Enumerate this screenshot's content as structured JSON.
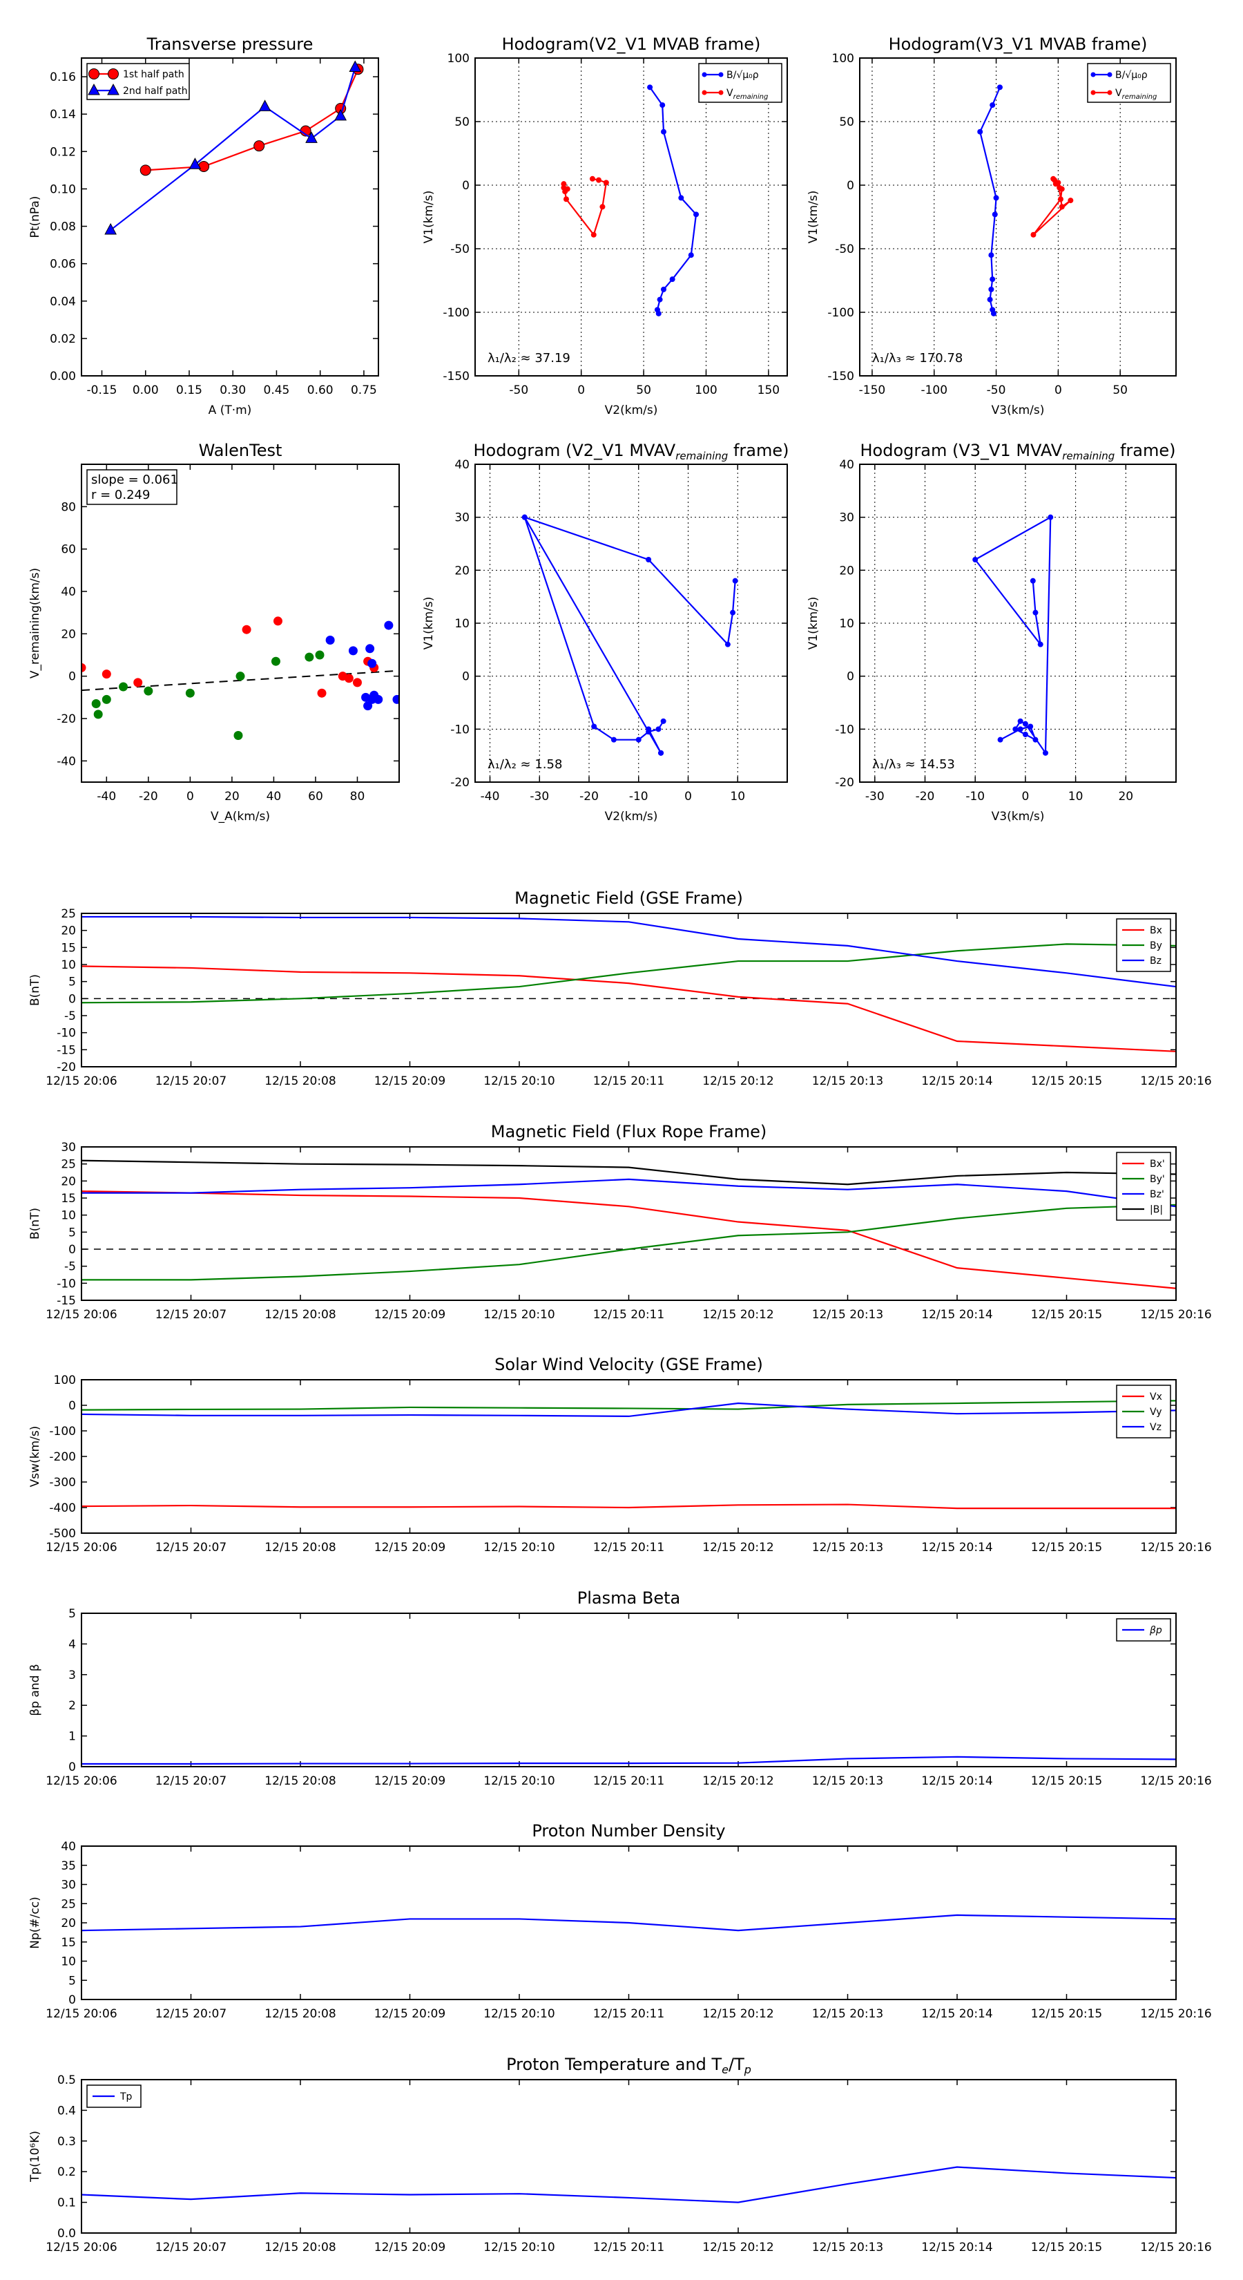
{
  "colors": {
    "red": "#ff0000",
    "blue": "#0000ff",
    "green": "#008000",
    "black": "#000000"
  },
  "chart_data": [
    {
      "id": "tp",
      "type": "scatter",
      "title": "Transverse pressure",
      "xlabel": "A (T·m)",
      "ylabel": "Pt(nPa)",
      "xlim": [
        -0.22,
        0.8
      ],
      "ylim": [
        0,
        0.17
      ],
      "xticks": [
        "-0.15",
        "0.00",
        "0.15",
        "0.30",
        "0.45",
        "0.60",
        "0.75"
      ],
      "yticks": [
        "0.00",
        "0.02",
        "0.04",
        "0.06",
        "0.08",
        "0.10",
        "0.12",
        "0.14",
        "0.16"
      ],
      "legend_position": "top-left",
      "series": [
        {
          "name": "1st half path",
          "color": "red",
          "marker": "circle",
          "x": [
            0.0,
            0.2,
            0.39,
            0.55,
            0.67,
            0.73
          ],
          "y": [
            0.11,
            0.112,
            0.123,
            0.131,
            0.143,
            0.164
          ]
        },
        {
          "name": "2nd half path",
          "color": "blue",
          "marker": "triangle",
          "x": [
            -0.12,
            0.17,
            0.41,
            0.57,
            0.67,
            0.72
          ],
          "y": [
            0.078,
            0.113,
            0.144,
            0.127,
            0.139,
            0.165
          ]
        }
      ]
    },
    {
      "id": "h1",
      "type": "line",
      "title": "Hodogram(V2_V1 MVAB frame)",
      "xlabel": "V2(km/s)",
      "ylabel": "V1(km/s)",
      "xlim": [
        -85,
        165
      ],
      "ylim": [
        -150,
        100
      ],
      "xticks": [
        "-50",
        "0",
        "50",
        "100",
        "150"
      ],
      "yticks": [
        "-150",
        "-100",
        "-50",
        "0",
        "50",
        "100"
      ],
      "annotation": "λ₁/λ₂ ≈ 37.19",
      "legend_position": "top-right",
      "series": [
        {
          "name": "B/√μ₀ρ",
          "color": "blue",
          "x": [
            55,
            65,
            66,
            80,
            92,
            88,
            73,
            66,
            63,
            61,
            62
          ],
          "y": [
            77,
            63,
            42,
            -10,
            -23,
            -55,
            -74,
            -82,
            -90,
            -98,
            -101
          ]
        },
        {
          "name": "V_remaining",
          "color": "red",
          "x": [
            9,
            14,
            20,
            17,
            10,
            -12,
            -13,
            -11,
            -14,
            -14
          ],
          "y": [
            5,
            4,
            2,
            -17,
            -39,
            -11,
            -5,
            -3,
            -2,
            1
          ]
        }
      ]
    },
    {
      "id": "h2",
      "type": "line",
      "title": "Hodogram(V3_V1 MVAB frame)",
      "xlabel": "V3(km/s)",
      "ylabel": "V1(km/s)",
      "xlim": [
        -160,
        95
      ],
      "ylim": [
        -150,
        100
      ],
      "xticks": [
        "-150",
        "-100",
        "-50",
        "0",
        "50"
      ],
      "yticks": [
        "-150",
        "-100",
        "-50",
        "0",
        "50",
        "100"
      ],
      "annotation": "λ₁/λ₃ ≈ 170.78",
      "legend_position": "top-right",
      "series": [
        {
          "name": "B/√μ₀ρ",
          "color": "blue",
          "x": [
            -47,
            -53,
            -63,
            -50,
            -51,
            -54,
            -53,
            -54,
            -55,
            -53,
            -52
          ],
          "y": [
            77,
            63,
            42,
            -10,
            -23,
            -55,
            -74,
            -82,
            -90,
            -98,
            -101
          ]
        },
        {
          "name": "V_remaining",
          "color": "red",
          "x": [
            -4,
            -3,
            0,
            3,
            10,
            -20,
            2,
            3,
            1,
            -2
          ],
          "y": [
            5,
            4,
            2,
            -17,
            -12,
            -39,
            -11,
            -3,
            -2,
            1
          ]
        }
      ]
    },
    {
      "id": "walen",
      "type": "scatter",
      "title": "WalenTest",
      "xlabel": "V_A(km/s)",
      "ylabel": "V_remaining(km/s)",
      "xlim": [
        -52,
        100
      ],
      "ylim": [
        -50,
        100
      ],
      "xticks": [
        "-40",
        "-20",
        "0",
        "20",
        "40",
        "60",
        "80"
      ],
      "yticks": [
        "-40",
        "-20",
        "0",
        "20",
        "40",
        "60",
        "80"
      ],
      "annotation": [
        "slope = 0.061",
        "r = 0.249"
      ],
      "fit": {
        "slope": 0.061,
        "intercept": -3.5
      },
      "series": [
        {
          "name": "",
          "color": "red",
          "x": [
            -52,
            -40,
            -25,
            27,
            42,
            63,
            73,
            76,
            80,
            85,
            88
          ],
          "y": [
            4,
            1,
            -3,
            22,
            26,
            -8,
            0,
            -1,
            -3,
            7,
            4
          ]
        },
        {
          "name": "",
          "color": "green",
          "x": [
            -45,
            -44,
            -40,
            -32,
            -20,
            0,
            23,
            24,
            41,
            57,
            62
          ],
          "y": [
            -13,
            -18,
            -11,
            -5,
            -7,
            -8,
            -28,
            0,
            7,
            9,
            10
          ]
        },
        {
          "name": "",
          "color": "blue",
          "x": [
            67,
            78,
            84,
            85,
            86,
            87,
            87,
            88,
            90,
            95,
            99
          ],
          "y": [
            17,
            12,
            -10,
            -14,
            13,
            -11,
            6,
            -9,
            -11,
            24,
            -11
          ]
        }
      ]
    },
    {
      "id": "h3",
      "type": "line",
      "title": "Hodogram (V2_V1 MVAV",
      "title_sub": "remaining",
      "title_end": " frame)",
      "xlabel": "V2(km/s)",
      "ylabel": "V1(km/s)",
      "xlim": [
        -43,
        20
      ],
      "ylim": [
        -20,
        40
      ],
      "xticks": [
        "-40",
        "-30",
        "-20",
        "-10",
        "0",
        "10"
      ],
      "yticks": [
        "-20",
        "-10",
        "0",
        "10",
        "20",
        "30",
        "40"
      ],
      "annotation": "λ₁/λ₂ ≈ 1.58",
      "series": [
        {
          "name": "",
          "color": "blue",
          "x": [
            -5,
            -6,
            -8,
            -10,
            -15,
            -19,
            -33,
            -8,
            8,
            9,
            9.5
          ],
          "y": [
            -8.5,
            -10,
            -10.5,
            -12,
            -12,
            -9.5,
            30,
            22,
            6,
            12,
            18
          ]
        },
        {
          "name": "",
          "color": "blue",
          "x": [
            -8,
            -5.5
          ],
          "y": [
            -10,
            -14.5
          ]
        },
        {
          "name": "",
          "color": "blue",
          "x": [
            -33,
            -5.5
          ],
          "y": [
            30,
            -14.5
          ]
        }
      ]
    },
    {
      "id": "h4",
      "type": "line",
      "title": "Hodogram (V3_V1 MVAV",
      "title_sub": "remaining",
      "title_end": " frame)",
      "xlabel": "V3(km/s)",
      "ylabel": "V1(km/s)",
      "xlim": [
        -33,
        30
      ],
      "ylim": [
        -20,
        40
      ],
      "xticks": [
        "-30",
        "-20",
        "-10",
        "0",
        "10",
        "20"
      ],
      "yticks": [
        "-20",
        "-10",
        "0",
        "10",
        "20",
        "30",
        "40"
      ],
      "annotation": "λ₁/λ₃ ≈ 14.53",
      "series": [
        {
          "name": "",
          "color": "blue",
          "x": [
            -5,
            -1,
            1,
            2,
            0,
            -2,
            -1,
            0,
            4,
            5,
            -10,
            3,
            2,
            1.5
          ],
          "y": [
            -12,
            -10,
            -9.5,
            -12,
            -11,
            -10,
            -8.5,
            -9,
            -14.5,
            30,
            22,
            6,
            12,
            18
          ]
        }
      ]
    },
    {
      "id": "ts1",
      "type": "line",
      "title": "Magnetic Field (GSE Frame)",
      "ylabel": "B(nT)",
      "x": [
        "12/15 20:06",
        "12/15 20:07",
        "12/15 20:08",
        "12/15 20:09",
        "12/15 20:10",
        "12/15 20:11",
        "12/15 20:12",
        "12/15 20:13",
        "12/15 20:14",
        "12/15 20:15",
        "12/15 20:16"
      ],
      "ylim": [
        -20,
        25
      ],
      "yticks": [
        "-20",
        "-15",
        "-10",
        "-5",
        "0",
        "5",
        "10",
        "15",
        "20",
        "25"
      ],
      "zero_line": true,
      "legend_position": "top-right",
      "series": [
        {
          "name": "Bx",
          "color": "red",
          "values": [
            9.5,
            9,
            7.8,
            7.5,
            6.7,
            4.5,
            0.5,
            -1.5,
            -12.5,
            -14,
            -15.5
          ]
        },
        {
          "name": "By",
          "color": "green",
          "values": [
            -1.2,
            -1,
            0,
            1.5,
            3.5,
            7.5,
            11,
            11,
            14,
            16,
            15.5
          ]
        },
        {
          "name": "Bz",
          "color": "blue",
          "values": [
            24,
            24,
            23.8,
            23.8,
            23.5,
            22.5,
            17.5,
            15.5,
            11,
            7.5,
            3.5
          ]
        }
      ]
    },
    {
      "id": "ts2",
      "type": "line",
      "title": "Magnetic Field (Flux Rope Frame)",
      "ylabel": "B(nT)",
      "x": [
        "12/15 20:06",
        "12/15 20:07",
        "12/15 20:08",
        "12/15 20:09",
        "12/15 20:10",
        "12/15 20:11",
        "12/15 20:12",
        "12/15 20:13",
        "12/15 20:14",
        "12/15 20:15",
        "12/15 20:16"
      ],
      "ylim": [
        -15,
        30
      ],
      "yticks": [
        "-15",
        "-10",
        "-5",
        "0",
        "5",
        "10",
        "15",
        "20",
        "25",
        "30"
      ],
      "zero_line": true,
      "legend_position": "top-right",
      "series": [
        {
          "name": "Bx'",
          "color": "red",
          "values": [
            17,
            16.5,
            15.8,
            15.5,
            15,
            12.5,
            8,
            5.5,
            -5.5,
            -8.5,
            -11.5
          ]
        },
        {
          "name": "By'",
          "color": "green",
          "values": [
            -9,
            -9,
            -8,
            -6.5,
            -4.5,
            0,
            4,
            5,
            9,
            12,
            13
          ]
        },
        {
          "name": "Bz'",
          "color": "blue",
          "values": [
            16.5,
            16.5,
            17.5,
            18,
            19,
            20.5,
            18.5,
            17.5,
            19,
            17,
            12.5
          ]
        },
        {
          "name": "|B|",
          "color": "black",
          "values": [
            26,
            25.5,
            25,
            24.8,
            24.5,
            24,
            20.5,
            19,
            21.5,
            22.5,
            22
          ]
        }
      ]
    },
    {
      "id": "ts3",
      "type": "line",
      "title": "Solar Wind Velocity (GSE Frame)",
      "ylabel": "Vsw(km/s)",
      "x": [
        "12/15 20:06",
        "12/15 20:07",
        "12/15 20:08",
        "12/15 20:09",
        "12/15 20:10",
        "12/15 20:11",
        "12/15 20:12",
        "12/15 20:13",
        "12/15 20:14",
        "12/15 20:15",
        "12/15 20:16"
      ],
      "ylim": [
        -500,
        100
      ],
      "yticks": [
        "-500",
        "-400",
        "-300",
        "-200",
        "-100",
        "0",
        "100"
      ],
      "legend_position": "top-right",
      "series": [
        {
          "name": "Vx",
          "color": "red",
          "values": [
            -395,
            -392,
            -398,
            -398,
            -396,
            -400,
            -390,
            -388,
            -403,
            -403,
            -403
          ]
        },
        {
          "name": "Vy",
          "color": "green",
          "values": [
            -18,
            -16,
            -15,
            -8,
            -10,
            -12,
            -15,
            3,
            8,
            13,
            18
          ]
        },
        {
          "name": "Vz",
          "color": "blue",
          "values": [
            -35,
            -40,
            -40,
            -38,
            -40,
            -43,
            8,
            -15,
            -33,
            -28,
            -20
          ]
        }
      ]
    },
    {
      "id": "ts4",
      "type": "line",
      "title": "Plasma Beta",
      "ylabel": "βp and β",
      "x": [
        "12/15 20:06",
        "12/15 20:07",
        "12/15 20:08",
        "12/15 20:09",
        "12/15 20:10",
        "12/15 20:11",
        "12/15 20:12",
        "12/15 20:13",
        "12/15 20:14",
        "12/15 20:15",
        "12/15 20:16"
      ],
      "ylim": [
        0,
        5
      ],
      "yticks": [
        "0",
        "1",
        "2",
        "3",
        "4",
        "5"
      ],
      "legend_position": "top-right",
      "series": [
        {
          "name": "βp",
          "color": "blue",
          "values": [
            0.09,
            0.09,
            0.1,
            0.1,
            0.11,
            0.11,
            0.12,
            0.26,
            0.32,
            0.26,
            0.24
          ]
        }
      ]
    },
    {
      "id": "ts5",
      "type": "line",
      "title": "Proton Number Density",
      "ylabel": "Np(#/cc)",
      "x": [
        "12/15 20:06",
        "12/15 20:07",
        "12/15 20:08",
        "12/15 20:09",
        "12/15 20:10",
        "12/15 20:11",
        "12/15 20:12",
        "12/15 20:13",
        "12/15 20:14",
        "12/15 20:15",
        "12/15 20:16"
      ],
      "ylim": [
        0,
        40
      ],
      "yticks": [
        "0",
        "5",
        "10",
        "15",
        "20",
        "25",
        "30",
        "35",
        "40"
      ],
      "series": [
        {
          "name": "",
          "color": "blue",
          "values": [
            18,
            18.5,
            19,
            21,
            21,
            20,
            18,
            20,
            22,
            21.5,
            21
          ]
        }
      ]
    },
    {
      "id": "ts6",
      "type": "line",
      "title": "Proton Temperature and T",
      "title_math": "e",
      "title_mid": "/T",
      "title_math2": "p",
      "ylabel": "Tp(10⁶K)",
      "x": [
        "12/15 20:06",
        "12/15 20:07",
        "12/15 20:08",
        "12/15 20:09",
        "12/15 20:10",
        "12/15 20:11",
        "12/15 20:12",
        "12/15 20:13",
        "12/15 20:14",
        "12/15 20:15",
        "12/15 20:16"
      ],
      "ylim": [
        0,
        0.5
      ],
      "yticks": [
        "0.0",
        "0.1",
        "0.2",
        "0.3",
        "0.4",
        "0.5"
      ],
      "legend_position": "top-left",
      "series": [
        {
          "name": "Tp",
          "color": "blue",
          "values": [
            0.125,
            0.11,
            0.13,
            0.125,
            0.128,
            0.115,
            0.1,
            0.16,
            0.215,
            0.195,
            0.18
          ]
        }
      ]
    }
  ]
}
